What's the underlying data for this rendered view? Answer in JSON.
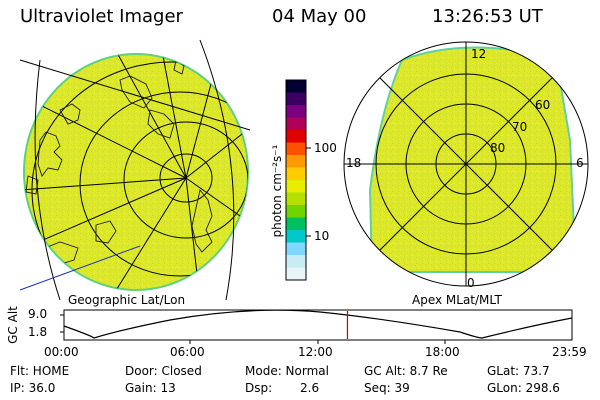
{
  "header": {
    "instrument": "Ultraviolet Imager",
    "date": "04 May 00",
    "time": "13:26:53 UT"
  },
  "colorbar": {
    "unit_label": "photon cm⁻²s⁻¹",
    "ticks": [
      "100",
      "10"
    ],
    "colors": [
      "#000033",
      "#3b0060",
      "#7a0080",
      "#b0005a",
      "#e00000",
      "#ff5000",
      "#ff9900",
      "#ffcc00",
      "#e8ee00",
      "#b4e000",
      "#6fd400",
      "#00c060",
      "#00c8c8",
      "#7fd8ff",
      "#c8ecf4",
      "#e8f4f6"
    ]
  },
  "geo_map": {
    "label": "Geographic Lat/Lon",
    "fill_color": "#dde82a",
    "rim_color": "#60d080"
  },
  "polar_map": {
    "label": "Apex MLat/MLT",
    "mlt_labels": {
      "top": "12",
      "left": "18",
      "right": "6",
      "bottom": "0"
    },
    "lat_labels": [
      "60",
      "70",
      "80"
    ],
    "fill_color": "#dde82a"
  },
  "altitude_plot": {
    "ylabel": "GC Alt",
    "yticks": [
      "9.0",
      "1.8"
    ],
    "xticks": [
      "00:00",
      "06:00",
      "12:00",
      "18:00",
      "23:59"
    ],
    "current_time_marker_fraction": 0.558,
    "marker_color": "#d00000"
  },
  "info": {
    "flt": "Flt: HOME",
    "ip": "IP: 36.0",
    "door": "Door: Closed",
    "gain": "Gain: 13",
    "mode": "Mode: Normal",
    "dsp_label": "Dsp:",
    "dsp_value": "2.6",
    "gc_alt": "GC Alt: 8.7 Re",
    "seq": "Seq: 39",
    "glat": "GLat:  73.7",
    "glon": "GLon: 298.6"
  }
}
